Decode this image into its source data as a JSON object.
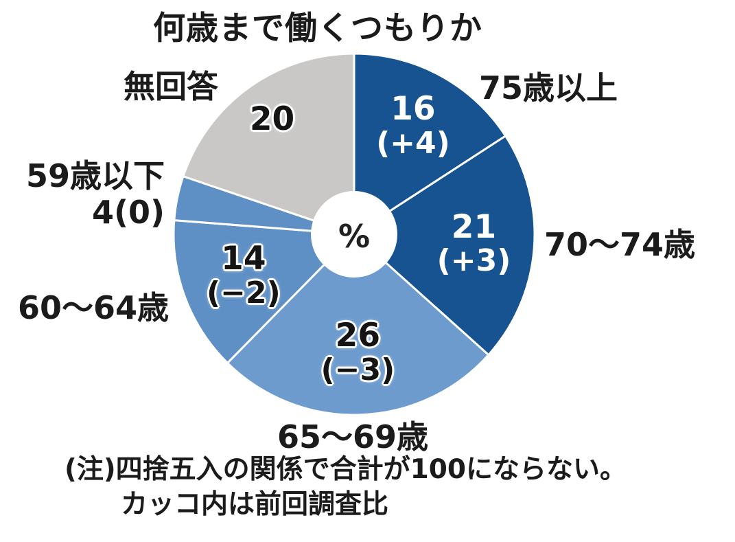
{
  "title": "何歳まで働くつもりか",
  "note": {
    "line1": "(注)四捨五入の関係で合計が100にならない。",
    "line2": "カッコ内は前回調査比"
  },
  "chart_data": {
    "type": "pie",
    "shape": "donut",
    "title": "何歳まで働くつもりか",
    "unit": "%",
    "start_angle_deg": 0,
    "direction": "clockwise",
    "divider_color": "#ffffff",
    "slices": [
      {
        "label": "75歳以上",
        "value": 16,
        "change": 4,
        "value_text": "16",
        "change_text": "(+4)",
        "color": "#165390",
        "label_style": "light",
        "label_placement": "inside"
      },
      {
        "label": "70〜74歳",
        "value": 21,
        "change": 3,
        "value_text": "21",
        "change_text": "(+3)",
        "color": "#165390",
        "label_style": "light",
        "label_placement": "inside"
      },
      {
        "label": "65〜69歳",
        "value": 26,
        "change": -3,
        "value_text": "26",
        "change_text": "(−3)",
        "color": "#6d9bce",
        "label_style": "dark",
        "label_placement": "inside"
      },
      {
        "label": "60〜64歳",
        "value": 14,
        "change": -2,
        "value_text": "14",
        "change_text": "(−2)",
        "color": "#5f90c5",
        "label_style": "dark",
        "label_placement": "inside"
      },
      {
        "label": "59歳以下",
        "value": 4,
        "change": 0,
        "value_text": "4(0)",
        "change_text": "",
        "color": "#5f90c5",
        "label_style": "dark",
        "label_placement": "outside"
      },
      {
        "label": "無回答",
        "value": 20,
        "change": null,
        "value_text": "20",
        "change_text": "",
        "color": "#c9c8c6",
        "label_style": "dark",
        "label_placement": "inside"
      }
    ]
  }
}
